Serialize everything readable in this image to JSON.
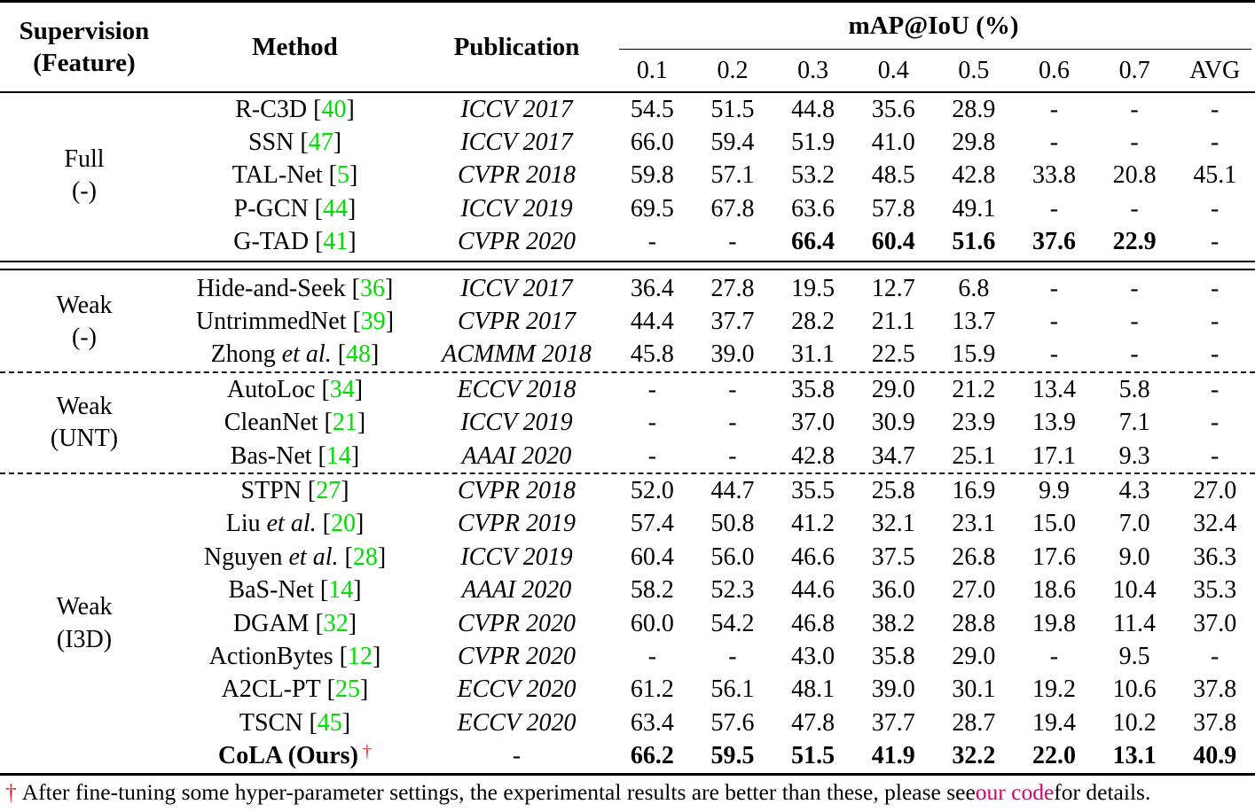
{
  "header": {
    "supervision_line1": "Supervision",
    "supervision_line2": "(Feature)",
    "method": "Method",
    "publication": "Publication",
    "map_group": "mAP@IoU (%)",
    "iou_labels": [
      "0.1",
      "0.2",
      "0.3",
      "0.4",
      "0.5",
      "0.6",
      "0.7",
      "AVG"
    ]
  },
  "colors": {
    "citation_green": "#00dd00",
    "dagger_red": "#dd2222",
    "link_pink": "#e0006c"
  },
  "chart_data": {
    "type": "table",
    "title": "mAP@IoU (%)",
    "columns": [
      "Supervision (Feature)",
      "Method",
      "Publication",
      "0.1",
      "0.2",
      "0.3",
      "0.4",
      "0.5",
      "0.6",
      "0.7",
      "AVG"
    ]
  },
  "groups": [
    {
      "supervision_line1": "Full",
      "supervision_line2": "(-)",
      "divider_after": "double",
      "rows": [
        {
          "method": "R-C3D",
          "etal": false,
          "cite": "40",
          "dagger": false,
          "bold_method": false,
          "publication": "ICCV 2017",
          "pub_italic": true,
          "values": [
            "54.5",
            "51.5",
            "44.8",
            "35.6",
            "28.9",
            "-",
            "-",
            "-"
          ],
          "bold_cols": []
        },
        {
          "method": "SSN",
          "etal": false,
          "cite": "47",
          "dagger": false,
          "bold_method": false,
          "publication": "ICCV 2017",
          "pub_italic": true,
          "values": [
            "66.0",
            "59.4",
            "51.9",
            "41.0",
            "29.8",
            "-",
            "-",
            "-"
          ],
          "bold_cols": []
        },
        {
          "method": "TAL-Net",
          "etal": false,
          "cite": "5",
          "dagger": false,
          "bold_method": false,
          "publication": "CVPR 2018",
          "pub_italic": true,
          "values": [
            "59.8",
            "57.1",
            "53.2",
            "48.5",
            "42.8",
            "33.8",
            "20.8",
            "45.1"
          ],
          "bold_cols": []
        },
        {
          "method": "P-GCN",
          "etal": false,
          "cite": "44",
          "dagger": false,
          "bold_method": false,
          "publication": "ICCV 2019",
          "pub_italic": true,
          "values": [
            "69.5",
            "67.8",
            "63.6",
            "57.8",
            "49.1",
            "-",
            "-",
            "-"
          ],
          "bold_cols": []
        },
        {
          "method": "G-TAD",
          "etal": false,
          "cite": "41",
          "dagger": false,
          "bold_method": false,
          "publication": "CVPR 2020",
          "pub_italic": true,
          "values": [
            "-",
            "-",
            "66.4",
            "60.4",
            "51.6",
            "37.6",
            "22.9",
            "-"
          ],
          "bold_cols": [
            2,
            3,
            4,
            5,
            6
          ]
        }
      ]
    },
    {
      "supervision_line1": "Weak",
      "supervision_line2": "(-)",
      "divider_after": "dashed",
      "rows": [
        {
          "method": "Hide-and-Seek",
          "etal": false,
          "cite": "36",
          "dagger": false,
          "bold_method": false,
          "publication": "ICCV 2017",
          "pub_italic": true,
          "values": [
            "36.4",
            "27.8",
            "19.5",
            "12.7",
            "6.8",
            "-",
            "-",
            "-"
          ],
          "bold_cols": []
        },
        {
          "method": "UntrimmedNet",
          "etal": false,
          "cite": "39",
          "dagger": false,
          "bold_method": false,
          "publication": "CVPR 2017",
          "pub_italic": true,
          "values": [
            "44.4",
            "37.7",
            "28.2",
            "21.1",
            "13.7",
            "-",
            "-",
            "-"
          ],
          "bold_cols": []
        },
        {
          "method": "Zhong",
          "etal": true,
          "cite": "48",
          "dagger": false,
          "bold_method": false,
          "publication": "ACMMM 2018",
          "pub_italic": true,
          "values": [
            "45.8",
            "39.0",
            "31.1",
            "22.5",
            "15.9",
            "-",
            "-",
            "-"
          ],
          "bold_cols": []
        }
      ]
    },
    {
      "supervision_line1": "Weak",
      "supervision_line2": "(UNT)",
      "divider_after": "dashed",
      "rows": [
        {
          "method": "AutoLoc",
          "etal": false,
          "cite": "34",
          "dagger": false,
          "bold_method": false,
          "publication": "ECCV 2018",
          "pub_italic": true,
          "values": [
            "-",
            "-",
            "35.8",
            "29.0",
            "21.2",
            "13.4",
            "5.8",
            "-"
          ],
          "bold_cols": []
        },
        {
          "method": "CleanNet",
          "etal": false,
          "cite": "21",
          "dagger": false,
          "bold_method": false,
          "publication": "ICCV 2019",
          "pub_italic": true,
          "values": [
            "-",
            "-",
            "37.0",
            "30.9",
            "23.9",
            "13.9",
            "7.1",
            "-"
          ],
          "bold_cols": []
        },
        {
          "method": "Bas-Net",
          "etal": false,
          "cite": "14",
          "dagger": false,
          "bold_method": false,
          "publication": "AAAI 2020",
          "pub_italic": true,
          "values": [
            "-",
            "-",
            "42.8",
            "34.7",
            "25.1",
            "17.1",
            "9.3",
            "-"
          ],
          "bold_cols": []
        }
      ]
    },
    {
      "supervision_line1": "Weak",
      "supervision_line2": "(I3D)",
      "divider_after": null,
      "rows": [
        {
          "method": "STPN",
          "etal": false,
          "cite": "27",
          "dagger": false,
          "bold_method": false,
          "publication": "CVPR 2018",
          "pub_italic": true,
          "values": [
            "52.0",
            "44.7",
            "35.5",
            "25.8",
            "16.9",
            "9.9",
            "4.3",
            "27.0"
          ],
          "bold_cols": []
        },
        {
          "method": "Liu",
          "etal": true,
          "cite": "20",
          "dagger": false,
          "bold_method": false,
          "publication": "CVPR 2019",
          "pub_italic": true,
          "values": [
            "57.4",
            "50.8",
            "41.2",
            "32.1",
            "23.1",
            "15.0",
            "7.0",
            "32.4"
          ],
          "bold_cols": []
        },
        {
          "method": "Nguyen",
          "etal": true,
          "cite": "28",
          "dagger": false,
          "bold_method": false,
          "publication": "ICCV 2019",
          "pub_italic": true,
          "values": [
            "60.4",
            "56.0",
            "46.6",
            "37.5",
            "26.8",
            "17.6",
            "9.0",
            "36.3"
          ],
          "bold_cols": []
        },
        {
          "method": "BaS-Net",
          "etal": false,
          "cite": "14",
          "dagger": false,
          "bold_method": false,
          "publication": "AAAI 2020",
          "pub_italic": true,
          "values": [
            "58.2",
            "52.3",
            "44.6",
            "36.0",
            "27.0",
            "18.6",
            "10.4",
            "35.3"
          ],
          "bold_cols": []
        },
        {
          "method": "DGAM",
          "etal": false,
          "cite": "32",
          "dagger": false,
          "bold_method": false,
          "publication": "CVPR 2020",
          "pub_italic": true,
          "values": [
            "60.0",
            "54.2",
            "46.8",
            "38.2",
            "28.8",
            "19.8",
            "11.4",
            "37.0"
          ],
          "bold_cols": []
        },
        {
          "method": "ActionBytes",
          "etal": false,
          "cite": "12",
          "dagger": false,
          "bold_method": false,
          "publication": "CVPR 2020",
          "pub_italic": true,
          "values": [
            "-",
            "-",
            "43.0",
            "35.8",
            "29.0",
            "-",
            "9.5",
            "-"
          ],
          "bold_cols": []
        },
        {
          "method": "A2CL-PT",
          "etal": false,
          "cite": "25",
          "dagger": false,
          "bold_method": false,
          "publication": "ECCV 2020",
          "pub_italic": true,
          "values": [
            "61.2",
            "56.1",
            "48.1",
            "39.0",
            "30.1",
            "19.2",
            "10.6",
            "37.8"
          ],
          "bold_cols": []
        },
        {
          "method": "TSCN",
          "etal": false,
          "cite": "45",
          "dagger": false,
          "bold_method": false,
          "publication": "ECCV 2020",
          "pub_italic": true,
          "values": [
            "63.4",
            "57.6",
            "47.8",
            "37.7",
            "28.7",
            "19.4",
            "10.2",
            "37.8"
          ],
          "bold_cols": []
        },
        {
          "method": "CoLA (Ours)",
          "etal": false,
          "cite": null,
          "dagger": true,
          "bold_method": true,
          "publication": "-",
          "pub_italic": false,
          "values": [
            "66.2",
            "59.5",
            "51.5",
            "41.9",
            "32.2",
            "22.0",
            "13.1",
            "40.9"
          ],
          "bold_cols": [
            0,
            1,
            2,
            3,
            4,
            5,
            6,
            7
          ]
        }
      ]
    }
  ],
  "footnote": {
    "marker": "†",
    "text_before_link": "After fine-tuning some hyper-parameter settings, the experimental results are better than these, please see ",
    "link_text": "our code",
    "text_after_link": " for details."
  }
}
